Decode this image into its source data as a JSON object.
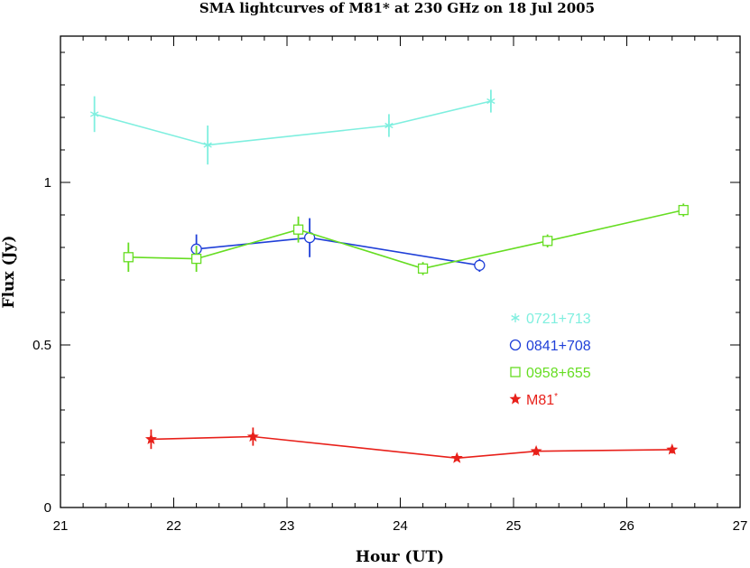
{
  "chart_data": {
    "type": "line",
    "title": "SMA lightcurves of M81* at 230 GHz on 18 Jul 2005",
    "xlabel": "Hour (UT)",
    "ylabel": "Flux (Jy)",
    "xlim": [
      21,
      27
    ],
    "ylim": [
      0,
      1.45
    ],
    "xticks": [
      "21",
      "22",
      "23",
      "24",
      "25",
      "26",
      "27"
    ],
    "yticks": [
      "0",
      "0.5",
      "1"
    ],
    "grid": false,
    "legend_position": "right-center",
    "series": [
      {
        "name": "0721+713",
        "marker": "asterisk",
        "color": "#7fefdf",
        "points": [
          {
            "x": 21.3,
            "y": 1.21,
            "err": 0.055
          },
          {
            "x": 22.3,
            "y": 1.115,
            "err": 0.06
          },
          {
            "x": 23.9,
            "y": 1.175,
            "err": 0.035
          },
          {
            "x": 24.8,
            "y": 1.25,
            "err": 0.035
          }
        ]
      },
      {
        "name": "0841+708",
        "marker": "circle",
        "color": "#1f3fd8",
        "points": [
          {
            "x": 22.2,
            "y": 0.795,
            "err": 0.045
          },
          {
            "x": 23.2,
            "y": 0.83,
            "err": 0.06
          },
          {
            "x": 24.7,
            "y": 0.745,
            "err": 0.02
          }
        ]
      },
      {
        "name": "0958+655",
        "marker": "square",
        "color": "#66dd22",
        "points": [
          {
            "x": 21.6,
            "y": 0.77,
            "err": 0.045
          },
          {
            "x": 22.2,
            "y": 0.765,
            "err": 0.04
          },
          {
            "x": 23.1,
            "y": 0.855,
            "err": 0.04
          },
          {
            "x": 24.2,
            "y": 0.735,
            "err": 0.02
          },
          {
            "x": 25.3,
            "y": 0.82,
            "err": 0.02
          },
          {
            "x": 26.5,
            "y": 0.915,
            "err": 0.02
          }
        ]
      },
      {
        "name": "M81*",
        "legend_label": "M81",
        "legend_superscript": "*",
        "marker": "star",
        "color": "#e8201a",
        "points": [
          {
            "x": 21.8,
            "y": 0.21,
            "err": 0.03
          },
          {
            "x": 22.7,
            "y": 0.218,
            "err": 0.028
          },
          {
            "x": 24.5,
            "y": 0.152,
            "err": 0.008
          },
          {
            "x": 25.2,
            "y": 0.173,
            "err": 0.012
          },
          {
            "x": 26.4,
            "y": 0.178,
            "err": 0.012
          }
        ]
      }
    ]
  }
}
